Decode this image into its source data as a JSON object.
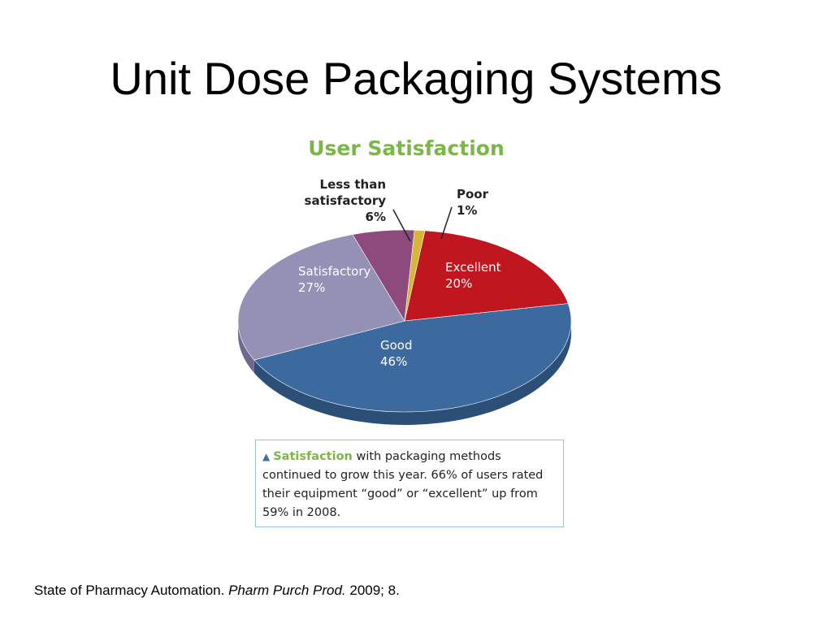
{
  "slide": {
    "title": "Unit Dose Packaging Systems"
  },
  "chart_data": {
    "type": "pie",
    "title": "User Satisfaction",
    "slices": [
      {
        "label": "Excellent",
        "value": 20,
        "value_label": "20%",
        "color": "#bf1620",
        "side_color": "#8e0f16"
      },
      {
        "label": "Good",
        "value": 46,
        "value_label": "46%",
        "color": "#3d6a9e",
        "side_color": "#2c4f78"
      },
      {
        "label": "Satisfactory",
        "value": 27,
        "value_label": "27%",
        "color": "#9590b6",
        "side_color": "#6e6990"
      },
      {
        "label_lines": [
          "Less than",
          "satisfactory"
        ],
        "value": 6,
        "value_label": "6%",
        "color": "#8e4a7c",
        "side_color": "#6a3560"
      },
      {
        "label": "Poor",
        "value": 1,
        "value_label": "1%",
        "color": "#d9b43a",
        "side_color": "#a8862a"
      }
    ],
    "legend": "none"
  },
  "caption": {
    "lead": "Satisfaction",
    "text": " with packaging methods continued to grow this year. 66% of users rated their equipment “good” or “excellent” up from 59% in 2008."
  },
  "citation": {
    "prefix": "State of Pharmacy Automation. ",
    "journal": "Pharm Purch Prod.",
    "suffix": " 2009; 8."
  }
}
